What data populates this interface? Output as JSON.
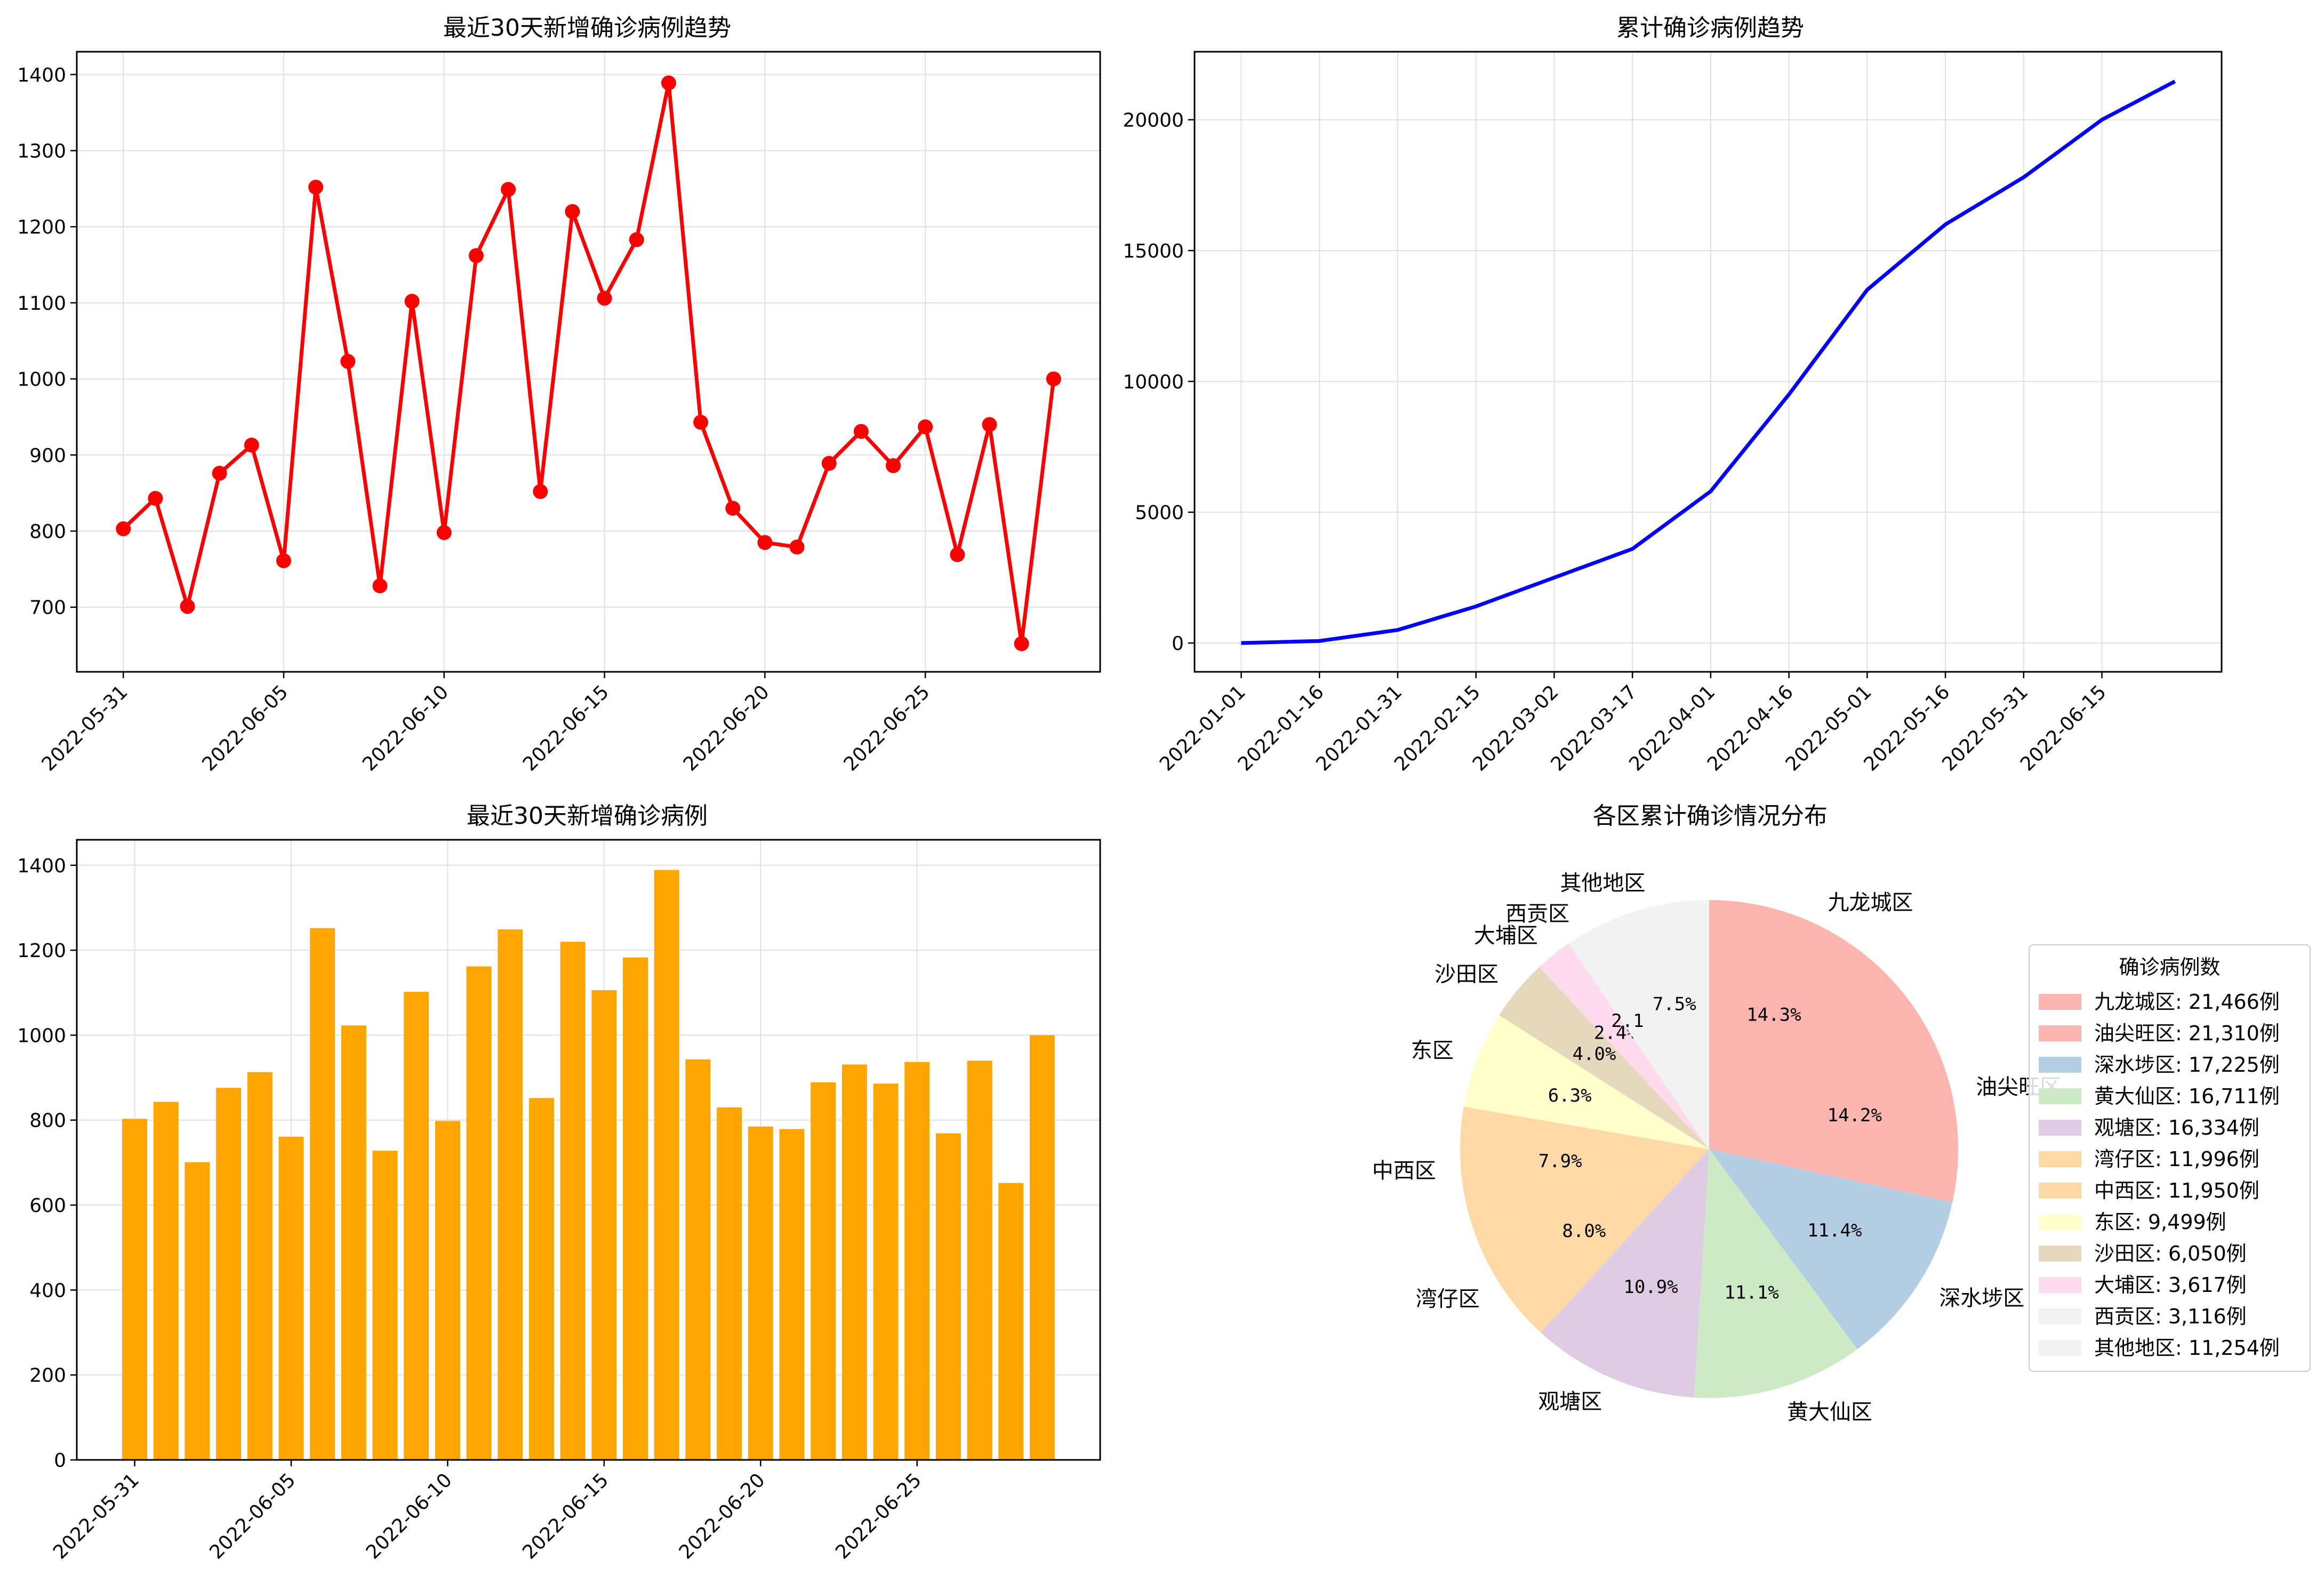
{
  "chart_data": [
    {
      "type": "line",
      "title": "最近30天新增确诊病例趋势",
      "x": [
        "2022-05-31",
        "2022-06-01",
        "2022-06-02",
        "2022-06-03",
        "2022-06-04",
        "2022-06-05",
        "2022-06-06",
        "2022-06-07",
        "2022-06-08",
        "2022-06-09",
        "2022-06-10",
        "2022-06-11",
        "2022-06-12",
        "2022-06-13",
        "2022-06-14",
        "2022-06-15",
        "2022-06-16",
        "2022-06-17",
        "2022-06-18",
        "2022-06-19",
        "2022-06-20",
        "2022-06-21",
        "2022-06-22",
        "2022-06-23",
        "2022-06-24",
        "2022-06-25",
        "2022-06-26",
        "2022-06-27",
        "2022-06-28",
        "2022-06-29"
      ],
      "values": [
        803,
        843,
        701,
        876,
        913,
        761,
        1252,
        1023,
        728,
        1102,
        798,
        1162,
        1249,
        852,
        1220,
        1106,
        1183,
        1389,
        943,
        830,
        785,
        779,
        889,
        931,
        886,
        937,
        769,
        940,
        652,
        1000
      ],
      "xticks": [
        "2022-05-31",
        "2022-06-05",
        "2022-06-10",
        "2022-06-15",
        "2022-06-20",
        "2022-06-25"
      ],
      "yticks": [
        700,
        800,
        900,
        1000,
        1100,
        1200,
        1300,
        1400
      ],
      "ylim": [
        615,
        1430
      ],
      "grid": true,
      "color": "#ff0000"
    },
    {
      "type": "line",
      "title": "累计确诊病例趋势",
      "x_start": "2022-01-01",
      "x_end": "2022-06-29",
      "xticks": [
        "2022-01-01",
        "2022-01-16",
        "2022-01-31",
        "2022-02-15",
        "2022-03-02",
        "2022-03-17",
        "2022-04-01",
        "2022-04-16",
        "2022-05-01",
        "2022-05-16",
        "2022-05-31",
        "2022-06-15"
      ],
      "keypoints": [
        [
          "2022-01-01",
          0
        ],
        [
          "2022-01-16",
          80
        ],
        [
          "2022-01-31",
          500
        ],
        [
          "2022-02-15",
          1400
        ],
        [
          "2022-03-02",
          2500
        ],
        [
          "2022-03-17",
          3600
        ],
        [
          "2022-04-01",
          5800
        ],
        [
          "2022-04-16",
          9500
        ],
        [
          "2022-05-01",
          13500
        ],
        [
          "2022-05-16",
          16000
        ],
        [
          "2022-05-31",
          17800
        ],
        [
          "2022-06-15",
          20000
        ],
        [
          "2022-06-29",
          21466
        ]
      ],
      "yticks": [
        0,
        5000,
        10000,
        15000,
        20000
      ],
      "ylim": [
        -1100,
        22600
      ],
      "grid": true,
      "color": "#0000ff"
    },
    {
      "type": "bar",
      "title": "最近30天新增确诊病例",
      "x": [
        "2022-05-31",
        "2022-06-01",
        "2022-06-02",
        "2022-06-03",
        "2022-06-04",
        "2022-06-05",
        "2022-06-06",
        "2022-06-07",
        "2022-06-08",
        "2022-06-09",
        "2022-06-10",
        "2022-06-11",
        "2022-06-12",
        "2022-06-13",
        "2022-06-14",
        "2022-06-15",
        "2022-06-16",
        "2022-06-17",
        "2022-06-18",
        "2022-06-19",
        "2022-06-20",
        "2022-06-21",
        "2022-06-22",
        "2022-06-23",
        "2022-06-24",
        "2022-06-25",
        "2022-06-26",
        "2022-06-27",
        "2022-06-28",
        "2022-06-29"
      ],
      "values": [
        803,
        843,
        701,
        876,
        913,
        761,
        1252,
        1023,
        728,
        1102,
        798,
        1162,
        1249,
        852,
        1220,
        1106,
        1183,
        1389,
        943,
        830,
        785,
        779,
        889,
        931,
        886,
        937,
        769,
        940,
        652,
        1000
      ],
      "xticks": [
        "2022-05-31",
        "2022-06-05",
        "2022-06-10",
        "2022-06-15",
        "2022-06-20",
        "2022-06-25"
      ],
      "yticks": [
        0,
        200,
        400,
        600,
        800,
        1000,
        1200,
        1400
      ],
      "ylim": [
        0,
        1460
      ],
      "grid": true,
      "color": "#ffa500"
    },
    {
      "type": "pie",
      "title": "各区累计确诊情况分布",
      "legend_title": "确诊病例数",
      "legend_position": "right",
      "slices": [
        {
          "label": "九龙城区",
          "value": 21466,
          "pct": "14.3%",
          "legend": "九龙城区: 21,466例",
          "color": "#fbb4ae"
        },
        {
          "label": "油尖旺区",
          "value": 21310,
          "pct": "14.2%",
          "legend": "油尖旺区: 21,310例",
          "color": "#fbb4ae"
        },
        {
          "label": "深水埗区",
          "value": 17225,
          "pct": "11.4%",
          "legend": "深水埗区: 17,225例",
          "color": "#b3cde3"
        },
        {
          "label": "黄大仙区",
          "value": 16711,
          "pct": "11.1%",
          "legend": "黄大仙区: 16,711例",
          "color": "#ccebc5"
        },
        {
          "label": "观塘区",
          "value": 16334,
          "pct": "10.9%",
          "legend": "观塘区: 16,334例",
          "color": "#decbe4"
        },
        {
          "label": "湾仔区",
          "value": 11996,
          "pct": "8.0%",
          "legend": "湾仔区: 11,996例",
          "color": "#fed9a6"
        },
        {
          "label": "中西区",
          "value": 11950,
          "pct": "7.9%",
          "legend": "中西区: 11,950例",
          "color": "#fed9a6"
        },
        {
          "label": "东区",
          "value": 9499,
          "pct": "6.3%",
          "legend": "东区: 9,499例",
          "color": "#ffffcc"
        },
        {
          "label": "沙田区",
          "value": 6050,
          "pct": "4.0%",
          "legend": "沙田区: 6,050例",
          "color": "#e5d8bd"
        },
        {
          "label": "大埔区",
          "value": 3617,
          "pct": "2.4%",
          "legend": "大埔区: 3,617例",
          "color": "#fddaec"
        },
        {
          "label": "西贡区",
          "value": 3116,
          "pct": "2.1%",
          "legend": "西贡区: 3,116例",
          "color": "#f2f2f2"
        },
        {
          "label": "其他地区",
          "value": 11254,
          "pct": "7.5%",
          "legend": "其他地区: 11,254例",
          "color": "#f2f2f2"
        }
      ]
    }
  ]
}
